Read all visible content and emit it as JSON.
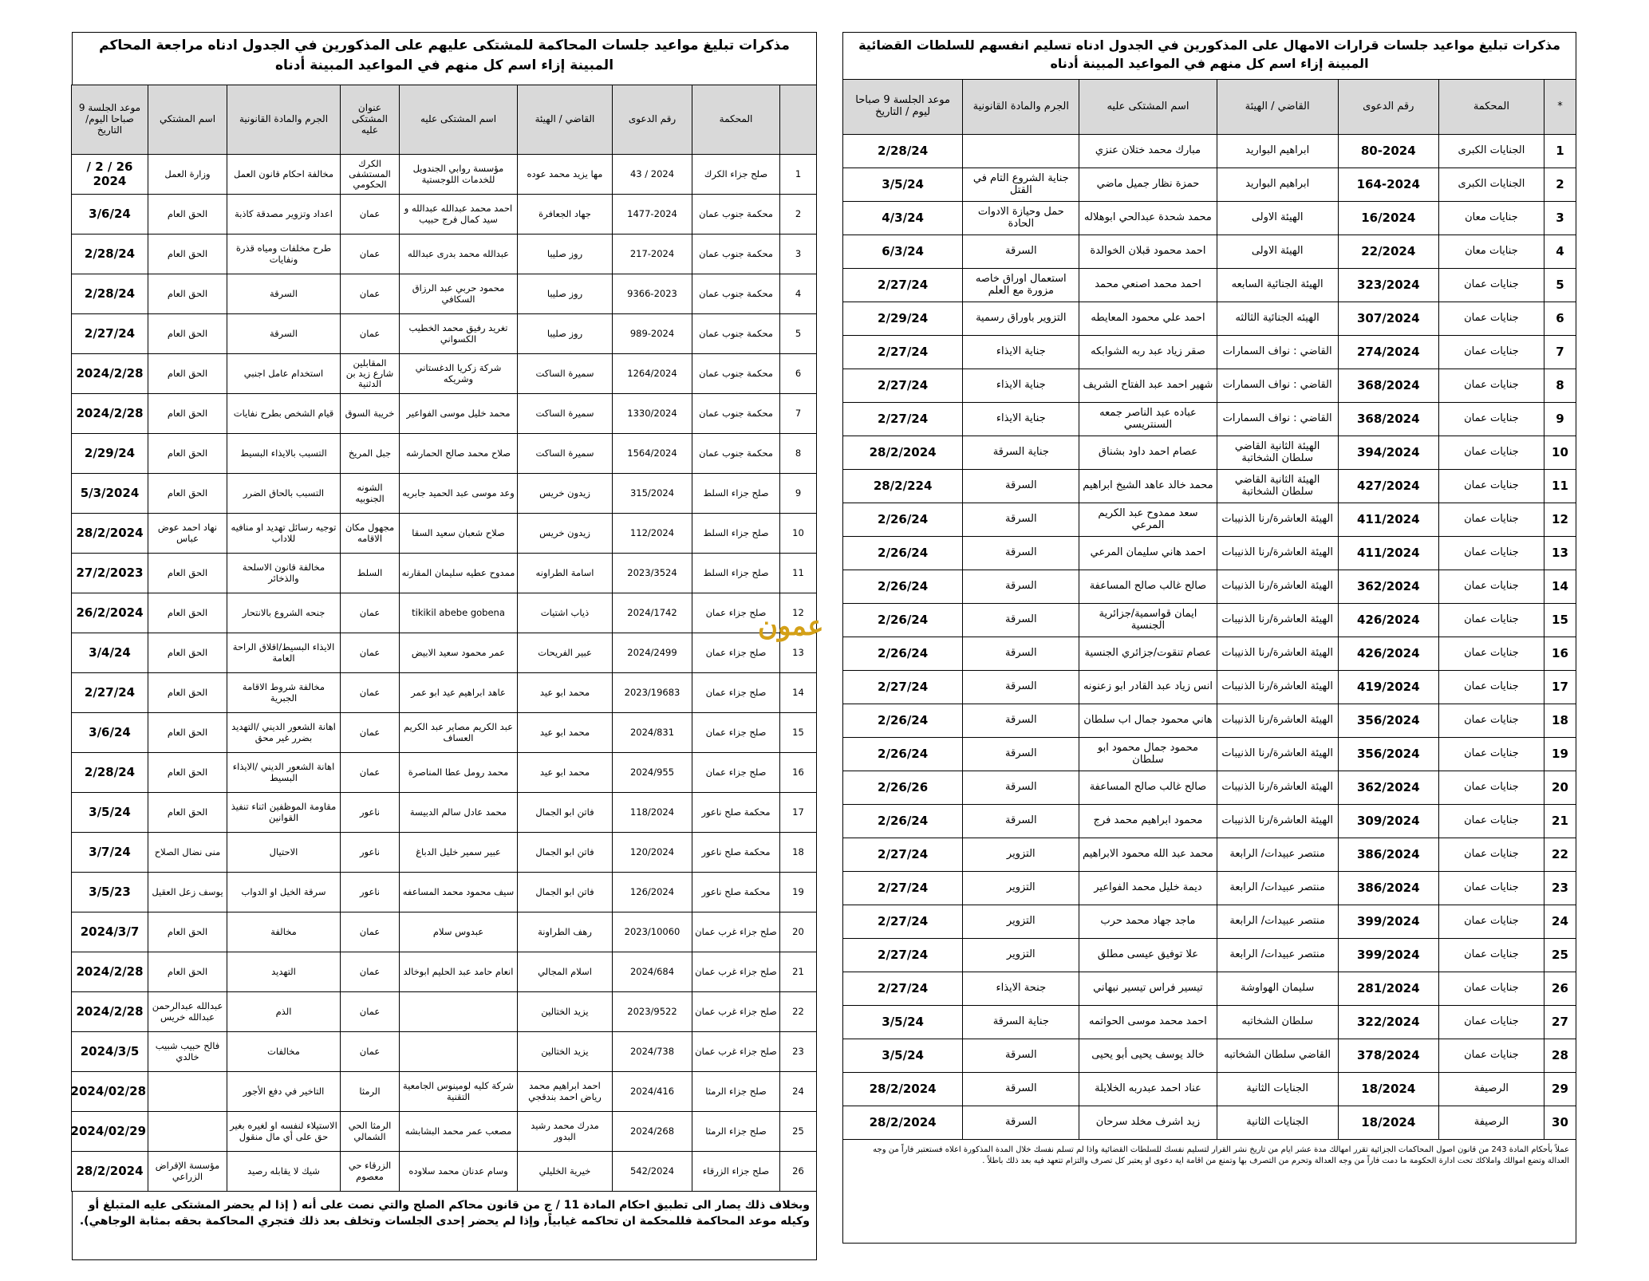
{
  "right_table": {
    "title": "مذكرات تبليغ مواعيد جلسات قرارات الامهال على المذكورين في الجدول ادناه تسليم انفسهم للسلطات القضائية المبينة إزاء اسم كل منهم في المواعيد المبينة أدناه",
    "headers": [
      "*",
      "المحكمة",
      "رقم الدعوى",
      "القاضي / الهيئة",
      "اسم المشتكى عليه",
      "الجرم والمادة القانونية",
      "موعد الجلسة 9 صباحا ليوم / التاريخ"
    ],
    "rows": [
      [
        1,
        "الجنايات الكبرى",
        "80-2024",
        "ابراهيم البواريد",
        "مبارك محمد ختلان عنزي",
        null,
        "2/28/24"
      ],
      [
        2,
        "الجنايات الكبرى",
        "164-2024",
        "ابراهيم البواريد",
        "حمزة نظار جميل ماضي",
        "جناية الشروع التام في القتل",
        "3/5/24"
      ],
      [
        3,
        "جنايات معان",
        "16/2024",
        "الهيئة الاولى",
        "محمد شحدة عبدالحي ابوهلاله",
        "حمل وحيازة الادوات الحادة",
        "4/3/24"
      ],
      [
        4,
        "جنايات معان",
        "22/2024",
        "الهيئة الاولى",
        "احمد محمود قبلان الخوالدة",
        "السرقة",
        "6/3/24"
      ],
      [
        5,
        "جنايات عمان",
        "323/2024",
        "الهيئة الجنائية السابعه",
        "احمد محمد اصنعي محمد",
        "استعمال اوراق خاصه مزورة مع العلم",
        "2/27/24"
      ],
      [
        6,
        "جنايات عمان",
        "307/2024",
        "الهيئه الجنائية الثالثه",
        "احمد علي محمود المعايطه",
        "التزوير باوراق رسمية",
        "2/29/24"
      ],
      [
        7,
        "جنايات عمان",
        "274/2024",
        "القاضي : نواف السمارات",
        "صقر زياد عبد ربه الشوابكه",
        "جناية الايذاء",
        "2/27/24"
      ],
      [
        8,
        "جنايات عمان",
        "368/2024",
        "القاضي : نواف السمارات",
        "شهير احمد عبد الفتاح الشريف",
        "جناية الايذاء",
        "2/27/24"
      ],
      [
        9,
        "جنايات عمان",
        "368/2024",
        "القاضي : نواف السمارات",
        "عباده عبد الناصر جمعه السنتريسي",
        "جناية الايذاء",
        "2/27/24"
      ],
      [
        10,
        "جنايات عمان",
        "394/2024",
        "الهيئة الثانية القاضي سلطان الشخاتبة",
        "عصام احمد داود بشناق",
        "جناية السرقة",
        "28/2/2024"
      ],
      [
        11,
        "جنايات عمان",
        "427/2024",
        "الهيئة الثانية القاضي سلطان الشخاتبة",
        "محمد خالد عاهد الشيخ ابراهيم",
        "السرقة",
        "28/2/224"
      ],
      [
        12,
        "جنايات عمان",
        "411/2024",
        "الهيئة العاشرة/رنا الذنيبات",
        "سعد ممدوح عبد الكريم المرعي",
        "السرقة",
        "2/26/24"
      ],
      [
        13,
        "جنايات عمان",
        "411/2024",
        "الهيئة العاشرة/رنا الذنيبات",
        "احمد هاني سليمان المرعي",
        "السرقة",
        "2/26/24"
      ],
      [
        14,
        "جنايات عمان",
        "362/2024",
        "الهيئة العاشرة/رنا الذنيبات",
        "صالح غالب صالح المساعفة",
        "السرقة",
        "2/26/24"
      ],
      [
        15,
        "جنايات عمان",
        "426/2024",
        "الهيئة العاشرة/رنا الذنيبات",
        "ايمان قواسمية/جزائرية الجنسية",
        "السرقة",
        "2/26/24"
      ],
      [
        16,
        "جنايات عمان",
        "426/2024",
        "الهيئة العاشرة/رنا الذنيبات",
        "عصام تنقوت/جزائري الجنسية",
        "السرقة",
        "2/26/24"
      ],
      [
        17,
        "جنايات عمان",
        "419/2024",
        "الهيئة العاشرة/رنا الذنيبات",
        "انس زياد عبد القادر ابو زعنونه",
        "السرقة",
        "2/27/24"
      ],
      [
        18,
        "جنايات عمان",
        "356/2024",
        "الهيئة العاشرة/رنا الذنيبات",
        "هاني محمود جمال اب سلطان",
        "السرقة",
        "2/26/24"
      ],
      [
        19,
        "جنايات عمان",
        "356/2024",
        "الهيئة العاشرة/رنا الذنيبات",
        "محمود جمال محمود ابو سلطان",
        "السرقة",
        "2/26/24"
      ],
      [
        20,
        "جنايات عمان",
        "362/2024",
        "الهيئة العاشرة/رنا الذنيبات",
        "صالح غالب صالح المساعفة",
        "السرقة",
        "2/26/26"
      ],
      [
        21,
        "جنايات عمان",
        "309/2024",
        "الهيئة العاشرة/رنا الذنيبات",
        "محمود ابراهيم محمد فرج",
        "السرقة",
        "2/26/24"
      ],
      [
        22,
        "جنايات عمان",
        "386/2024",
        "منتصر عبيدات/ الرابعة",
        "محمد عبد الله محمود الابراهيم",
        "التزوير",
        "2/27/24"
      ],
      [
        23,
        "جنايات عمان",
        "386/2024",
        "منتصر عبيدات/ الرابعة",
        "ديمة خليل محمد الفواعير",
        "التزوير",
        "2/27/24"
      ],
      [
        24,
        "جنايات عمان",
        "399/2024",
        "منتصر عبيدات/ الرابعة",
        "ماجد جهاد محمد حرب",
        "التزوير",
        "2/27/24"
      ],
      [
        25,
        "جنايات عمان",
        "399/2024",
        "منتصر عبيدات/ الرابعة",
        "علا توفيق عيسى مطلق",
        "التزوير",
        "2/27/24"
      ],
      [
        26,
        "جنايات عمان",
        "281/2024",
        "سليمان الهواوشة",
        "تيسير فراس تيسير نبهاني",
        "جنحة الايذاء",
        "2/27/24"
      ],
      [
        27,
        "جنايات عمان",
        "322/2024",
        "سلطان الشخاتبه",
        "احمد محمد موسى الحواتمه",
        "جناية السرقة",
        "3/5/24"
      ],
      [
        28,
        "جنايات عمان",
        "378/2024",
        "القاضي سلطان الشخاتبه",
        "خالد يوسف يحيى أبو يحيى",
        "السرقة",
        "3/5/24"
      ],
      [
        29,
        "الرصيفة",
        "18/2024",
        "الجنايات الثانية",
        "عناد احمد عبدربه الخلايلة",
        "السرقة",
        "28/2/2024"
      ],
      [
        30,
        "الرصيفة",
        "18/2024",
        "الجنايات الثانية",
        "زيد اشرف مخلد سرحان",
        "السرقة",
        "28/2/2024"
      ]
    ],
    "note": "عملاً بأحكام المادة 243 من قانون اصول المحاكمات الجزائية تقرر امهالك مدة عشر ايام من تاريخ نشر القرار لتسليم نفسك للسلطات القضائية واذا لم تسلم نفسك خلال المدة المذكورة اعلاه فستعتبر فاراً من وجه العدالة وتضع اموالك واملاكك تحت ادارة الحكومة ما دمت فاراً من وجه العدالة وتحرم من التصرف بها وتمنع من اقامة اية دعوى او يعتبر كل تصرف والتزام تتعهد فيه بعد ذلك باطلاً ."
  },
  "left_table": {
    "title": "مذكرات تبليغ مواعيد جلسات المحاكمة للمشتكى عليهم على المذكورين في الجدول ادناه مراجعة المحاكم المبينة إزاء اسم كل منهم في المواعيد المبينة أدناه",
    "headers": [
      null,
      "المحكمة",
      "رقم الدعوى",
      "القاضي / الهيئة",
      "اسم المشتكى عليه",
      "عنوان المشتكى عليه",
      "الجرم والمادة القانونية",
      "اسم المشتكي",
      "موعد الجلسة 9 صباحا اليوم/التاريخ"
    ],
    "rows": [
      [
        1,
        "صلح جزاء الكرك",
        "2024 / 43",
        "مها يزيد محمد عوده",
        "مؤسسة روابي الجندويل للخدمات اللوجستية",
        "الكرك المستشفى الحكومي",
        "مخالفة احكام قانون العمل",
        "وزارة العمل",
        "26 / 2 / 2024"
      ],
      [
        2,
        "محكمة جنوب عمان",
        "1477-2024",
        "جهاد الجعافرة",
        "احمد محمد عبدالله عبدالله و سيد كمال فرج حبيب",
        "عمان",
        "اعداد وتزوير مصدقة كاذبة",
        "الحق العام",
        "3/6/24"
      ],
      [
        3,
        "محكمة جنوب عمان",
        "217-2024",
        "روز صليبا",
        "عبدالله محمد بدرى عبدالله",
        "عمان",
        "طرح مخلفات ومياه قذرة ونفايات",
        "الحق العام",
        "2/28/24"
      ],
      [
        4,
        "محكمة جنوب عمان",
        "9366-2023",
        "روز صليبا",
        "محمود حربي عبد الرزاق السكافي",
        "عمان",
        "السرقة",
        "الحق العام",
        "2/28/24"
      ],
      [
        5,
        "محكمة جنوب عمان",
        "989-2024",
        "روز صليبا",
        "تغريد رفيق محمد الخطيب الكسواني",
        "عمان",
        "السرقة",
        "الحق العام",
        "2/27/24"
      ],
      [
        6,
        "محكمة جنوب عمان",
        "1264/2024",
        "سميرة الساكت",
        "شركة زكريا الدغستاني وشريكه",
        "المقابلين شارع زيد بن الدثنية",
        "استخدام عامل اجنبي",
        "الحق العام",
        "2024/2/28"
      ],
      [
        7,
        "محكمة جنوب عمان",
        "1330/2024",
        "سميرة الساكت",
        "محمد خليل موسى الفواعير",
        "خريبة السوق",
        "قيام الشخص بطرح نفايات",
        "الحق العام",
        "2024/2/28"
      ],
      [
        8,
        "محكمة جنوب عمان",
        "1564/2024",
        "سميرة الساكت",
        "صلاح محمد صالح الحمارشه",
        "جبل المريخ",
        "التسبب بالايذاء البسيط",
        "الحق العام",
        "2/29/24"
      ],
      [
        9,
        "صلح جزاء السلط",
        "315/2024",
        "زيدون خريس",
        "وعد موسى عبد الحميد جابريه",
        "الشونه الجنوبيه",
        "التسبب بالحاق الضرر",
        "الحق العام",
        "5/3/2024"
      ],
      [
        10,
        "صلح جزاء السلط",
        "112/2024",
        "زيدون خريس",
        "صلاح شعبان سعيد السقا",
        "مجهول مكان الاقامه",
        "توجيه رسائل تهديد او منافيه للاداب",
        "نهاد احمد عوض عباس",
        "28/2/2024"
      ],
      [
        11,
        "صلح جزاء السلط",
        "2023/3524",
        "اسامة الطراونه",
        "ممدوح عطيه سليمان المقارنه",
        "السلط",
        "مخالفة قانون الاسلحة والذخائر",
        "الحق العام",
        "27/2/2023"
      ],
      [
        12,
        "صلح جزاء عمان",
        "2024/1742",
        "ذياب اشتيات",
        "tikikil abebe gobena",
        "عمان",
        "جنحه الشروع بالانتحار",
        "الحق العام",
        "26/2/2024"
      ],
      [
        13,
        "صلح جزاء عمان",
        "2024/2499",
        "عبير الفريحات",
        "عمر محمود سعيد الابيض",
        "عمان",
        "الايذاء البسيط/اقلاق الراحة العامة",
        "الحق العام",
        "3/4/24"
      ],
      [
        14,
        "صلح جزاء عمان",
        "2023/19683",
        "محمد ابو عيد",
        "عاهد ابراهيم عيد ابو عمر",
        "عمان",
        "مخالفة شروط الاقامة الجبرية",
        "الحق العام",
        "2/27/24"
      ],
      [
        15,
        "صلح جزاء عمان",
        "2024/831",
        "محمد ابو عيد",
        "عبد الكريم مصاير عبد الكريم العساف",
        "عمان",
        "اهانة الشعور الديني /التهديد بضرر غير محق",
        "الحق العام",
        "3/6/24"
      ],
      [
        16,
        "صلح جزاء عمان",
        "2024/955",
        "محمد ابو عيد",
        "محمد رومل عطا المناصرة",
        "عمان",
        "اهانة الشعور الديني /الايذاء البسيط",
        "الحق العام",
        "2/28/24"
      ],
      [
        17,
        "محكمة صلح ناعور",
        "118/2024",
        "فاتن ابو الجمال",
        "محمد عادل سالم الدبيسة",
        "ناعور",
        "مقاومة الموظفين اثناء تنفيذ القوانين",
        "الحق العام",
        "3/5/24"
      ],
      [
        18,
        "محكمة صلح ناعور",
        "120/2024",
        "فاتن ابو الجمال",
        "عبير سمير خليل الدباغ",
        "ناعور",
        "الاحتيال",
        "منى نضال الصلاح",
        "3/7/24"
      ],
      [
        19,
        "محكمة صلح ناعور",
        "126/2024",
        "فاتن ابو الجمال",
        "سيف محمود محمد المساعفه",
        "ناعور",
        "سرقة الخيل او الدواب",
        "يوسف زعل العقيل",
        "3/5/23"
      ],
      [
        20,
        "صلح جزاء غرب عمان",
        "2023/10060",
        "رهف الطراونة",
        "عبدوس سلام",
        "عمان",
        "مخالفة",
        "الحق العام",
        "2024/3/7"
      ],
      [
        21,
        "صلح جزاء غرب عمان",
        "2024/684",
        "اسلام المجالي",
        "انعام حامد عبد الحليم ابوخالد",
        "عمان",
        "التهديد",
        "الحق العام",
        "2024/2/28"
      ],
      [
        22,
        "صلح جزاء غرب عمان",
        "2023/9522",
        "يزيد الختالين",
        null,
        "عمان",
        "الذم",
        "عبدالله عبدالرحمن عبدالله خريس",
        "2024/2/28"
      ],
      [
        23,
        "صلح جزاء غرب عمان",
        "2024/738",
        "يزيد الختالين",
        null,
        "عمان",
        "مخالفات",
        "فالح حبيب شبيب خالدي",
        "2024/3/5"
      ],
      [
        24,
        "صلح جزاء الرمثا",
        "2024/416",
        "احمد ابراهيم محمد رياض احمد بندقجي",
        "شركة كليه لومينوس الجامعية التقنية",
        "الرمثا",
        "التاخير في دفع الأجور",
        null,
        "2024/02/28"
      ],
      [
        25,
        "صلح جزاء الرمثا",
        "2024/268",
        "مدرك محمد رشيد البدور",
        "مصعب عمر محمد البشابشه",
        "الرمثا الحي الشمالي",
        "الاستيلاء لنفسه او لغيره بغير حق على أي مال منقول",
        null,
        "2024/02/29"
      ],
      [
        26,
        "صلح جزاء الزرقاء",
        "542/2024",
        "خيرية الخليلي",
        "وسام عدنان محمد سلاوده",
        "الزرقاء حي معصوم",
        "شيك لا يقابله رصيد",
        "مؤسسة الإقراض الزراعي",
        "28/2/2024"
      ]
    ],
    "note": "وبخلاف ذلك يصار الى تطبيق احكام المادة 11 / ج من قانون محاكم الصلح والتي نصت على أنه ( إذا لم يحضر المشتكى عليه المتبلغ أو وكيله موعد المحاكمة فللمحكمة ان تحاكمه غيابياً, وإذا لم يحضر إحدى الجلسات وتخلف بعد ذلك فتجري المحاكمة بحقه بمثابة الوجاهي)."
  },
  "watermark": "عمون"
}
